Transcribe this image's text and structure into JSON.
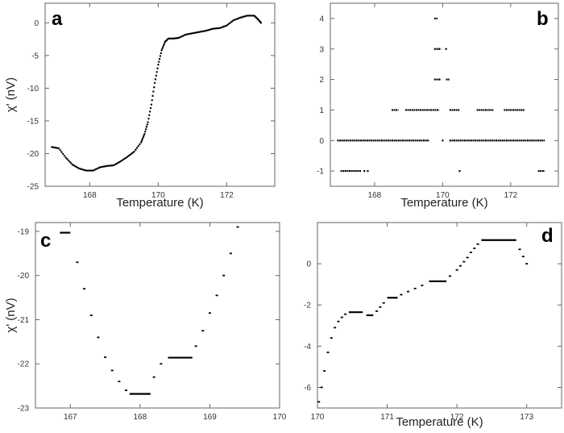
{
  "chart_data": [
    {
      "panel": "a",
      "type": "scatter",
      "xlabel": "Temperature (K)",
      "ylabel": "χ' (nV)",
      "xlim": [
        166.7,
        173.4
      ],
      "ylim": [
        -25,
        3
      ],
      "xticks": [
        168,
        170,
        172
      ],
      "yticks": [
        0,
        -5,
        -10,
        -15,
        -20,
        -25
      ],
      "grid": false,
      "series": [
        {
          "x": [
            166.9,
            167.1,
            167.3,
            167.5,
            167.7,
            167.9,
            168.1,
            168.3,
            168.5,
            168.7,
            168.9,
            169.1,
            169.3,
            169.5,
            169.6,
            169.7,
            169.8,
            169.9,
            170.0,
            170.1,
            170.2,
            170.3,
            170.45,
            170.6,
            170.8,
            171.0,
            171.2,
            171.4,
            171.6,
            171.8,
            172.0,
            172.2,
            172.4,
            172.6,
            172.8,
            172.9,
            173.0
          ],
          "y": [
            -19.0,
            -19.2,
            -20.6,
            -21.7,
            -22.3,
            -22.6,
            -22.6,
            -22.1,
            -21.9,
            -21.8,
            -21.2,
            -20.5,
            -19.7,
            -18.3,
            -17.0,
            -15.2,
            -12.5,
            -9.2,
            -6.4,
            -4.2,
            -2.9,
            -2.4,
            -2.4,
            -2.3,
            -1.8,
            -1.6,
            -1.4,
            -1.2,
            -0.9,
            -0.8,
            -0.4,
            0.4,
            0.8,
            1.1,
            1.1,
            0.6,
            0.0
          ]
        }
      ]
    },
    {
      "panel": "b",
      "type": "scatter",
      "xlabel": "Temperature (K)",
      "ylabel": "",
      "xlim": [
        166.7,
        173.4
      ],
      "ylim": [
        -1.5,
        4.5
      ],
      "xticks": [
        168,
        170,
        172
      ],
      "yticks": [
        4,
        3,
        2,
        1,
        0,
        -1
      ],
      "grid": false,
      "segments": [
        {
          "x0": 166.9,
          "x1": 169.6,
          "y": 0
        },
        {
          "x0": 170.2,
          "x1": 173.0,
          "y": 0
        },
        {
          "x0": 167.0,
          "x1": 167.6,
          "y": -1
        },
        {
          "x0": 168.5,
          "x1": 168.7,
          "y": 1
        },
        {
          "x0": 168.9,
          "x1": 169.9,
          "y": 1
        },
        {
          "x0": 170.2,
          "x1": 170.5,
          "y": 1
        },
        {
          "x0": 171.0,
          "x1": 171.5,
          "y": 1
        },
        {
          "x0": 171.8,
          "x1": 172.4,
          "y": 1
        },
        {
          "x0": 169.75,
          "x1": 169.95,
          "y": 2
        },
        {
          "x0": 170.1,
          "x1": 170.2,
          "y": 2
        },
        {
          "x0": 169.75,
          "x1": 169.95,
          "y": 3
        },
        {
          "x0": 169.75,
          "x1": 169.85,
          "y": 4
        },
        {
          "x0": 172.8,
          "x1": 173.0,
          "y": -1
        }
      ],
      "points": [
        {
          "x": 170.1,
          "y": 3
        },
        {
          "x": 170.5,
          "y": -1
        },
        {
          "x": 170.0,
          "y": 0
        },
        {
          "x": 167.7,
          "y": -1
        },
        {
          "x": 167.8,
          "y": -1
        }
      ]
    },
    {
      "panel": "c",
      "type": "scatter",
      "xlabel": "",
      "ylabel": "χ' (nV)",
      "xlim": [
        166.5,
        170.0
      ],
      "ylim": [
        -23.0,
        -18.8
      ],
      "xticks": [
        167,
        168,
        169,
        170
      ],
      "yticks": [
        -19,
        -20,
        -21,
        -22,
        -23
      ],
      "grid": false,
      "segments": [
        {
          "x0": 166.85,
          "x1": 167.0,
          "y": -19.03
        },
        {
          "x0": 167.85,
          "x1": 168.15,
          "y": -22.68
        },
        {
          "x0": 168.4,
          "x1": 168.75,
          "y": -21.86
        }
      ],
      "series": [
        {
          "x": [
            167.1,
            167.2,
            167.3,
            167.4,
            167.5,
            167.6,
            167.7,
            167.8,
            168.2,
            168.3,
            168.8,
            168.9,
            169.0,
            169.1,
            169.2,
            169.3,
            169.4
          ],
          "y": [
            -19.7,
            -20.3,
            -20.9,
            -21.4,
            -21.85,
            -22.15,
            -22.4,
            -22.6,
            -22.3,
            -22.0,
            -21.6,
            -21.25,
            -20.85,
            -20.45,
            -20.0,
            -19.5,
            -18.9
          ]
        }
      ]
    },
    {
      "panel": "d",
      "type": "scatter",
      "xlabel": "Temperature (K)",
      "ylabel": "",
      "xlim": [
        170.0,
        173.5
      ],
      "ylim": [
        -7,
        2
      ],
      "xticks": [
        170,
        171,
        172,
        173
      ],
      "yticks": [
        0,
        -2,
        -4,
        -6
      ],
      "grid": false,
      "segments": [
        {
          "x0": 170.45,
          "x1": 170.65,
          "y": -2.35
        },
        {
          "x0": 170.7,
          "x1": 170.8,
          "y": -2.5
        },
        {
          "x0": 171.0,
          "x1": 171.15,
          "y": -1.65
        },
        {
          "x0": 171.6,
          "x1": 171.85,
          "y": -0.85
        },
        {
          "x0": 172.35,
          "x1": 172.85,
          "y": 1.15
        }
      ],
      "series": [
        {
          "x": [
            170.02,
            170.06,
            170.1,
            170.15,
            170.2,
            170.25,
            170.3,
            170.35,
            170.4,
            170.85,
            170.9,
            170.95,
            171.2,
            171.3,
            171.4,
            171.5,
            171.9,
            172.0,
            172.05,
            172.1,
            172.15,
            172.2,
            172.25,
            172.3,
            172.9,
            172.95,
            173.0
          ],
          "y": [
            -6.7,
            -6.0,
            -5.2,
            -4.3,
            -3.6,
            -3.1,
            -2.8,
            -2.6,
            -2.45,
            -2.3,
            -2.1,
            -1.9,
            -1.5,
            -1.35,
            -1.2,
            -1.05,
            -0.6,
            -0.3,
            -0.1,
            0.1,
            0.3,
            0.55,
            0.75,
            0.95,
            0.7,
            0.35,
            0.0
          ]
        }
      ]
    }
  ]
}
